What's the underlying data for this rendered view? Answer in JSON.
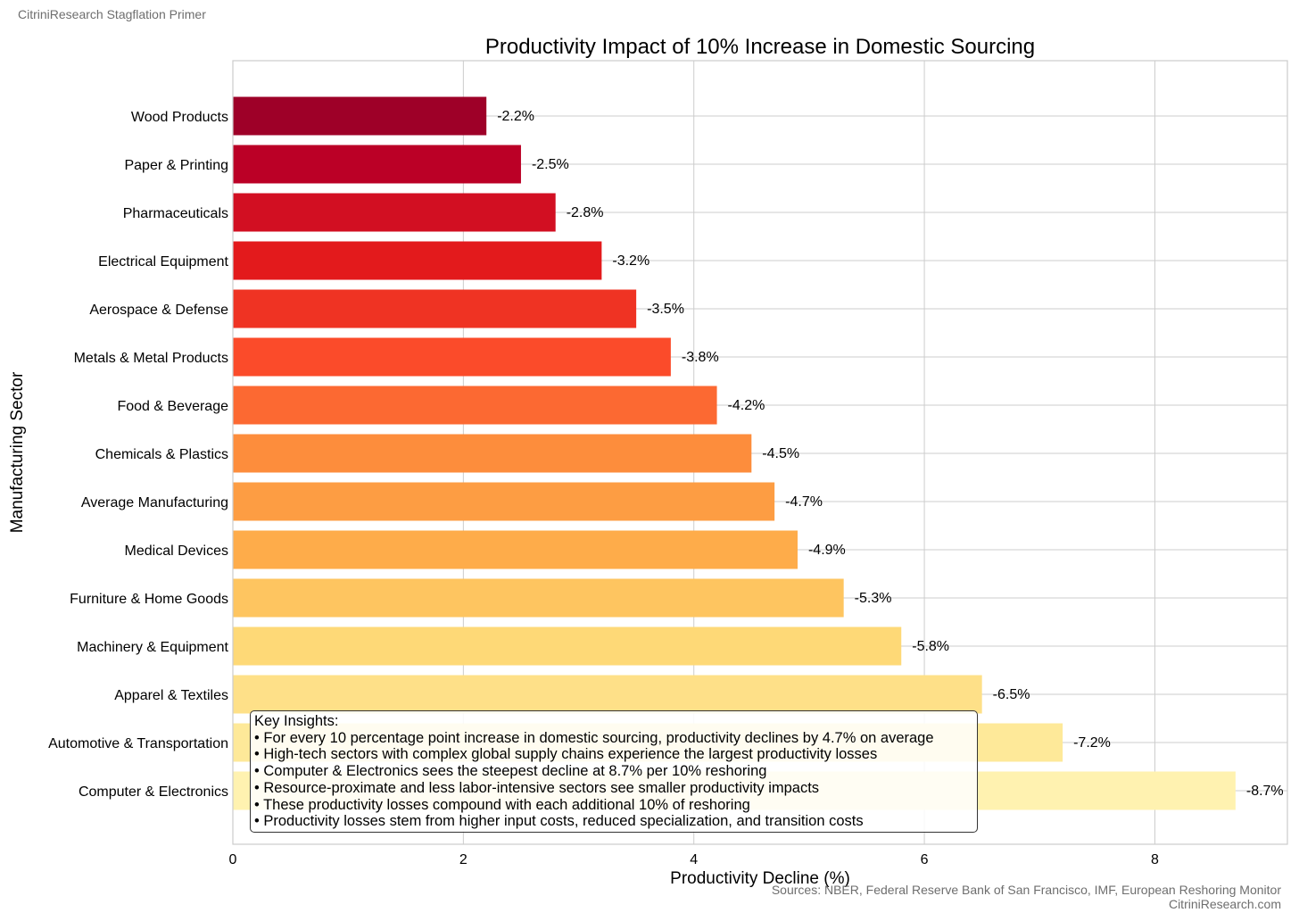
{
  "brand": "CitriniResearch Stagflation Primer",
  "sources": {
    "line1": "Sources: NBER, Federal Reserve Bank of San Francisco, IMF, European Reshoring Monitor",
    "line2": "CitriniResearch.com"
  },
  "insights": {
    "title": "Key Insights:",
    "items": [
      "For every 10 percentage point increase in domestic sourcing, productivity declines by 4.7% on average",
      "High-tech sectors with complex global supply chains experience the largest productivity losses",
      "Computer & Electronics sees the steepest decline at 8.7% per 10% reshoring",
      "Resource-proximate and less labor-intensive sectors see smaller productivity impacts",
      "These productivity losses compound with each additional 10% of reshoring",
      "Productivity losses stem from higher input costs, reduced specialization, and transition costs"
    ]
  },
  "chart_data": {
    "type": "bar",
    "orientation": "horizontal",
    "title": "Productivity Impact of 10% Increase in Domestic Sourcing",
    "xlabel": "Productivity Decline (%)",
    "ylabel": "Manufacturing Sector",
    "xlim": [
      0,
      9.15
    ],
    "xticks": [
      0,
      2,
      4,
      6,
      8
    ],
    "grid": true,
    "categories": [
      "Wood Products",
      "Paper & Printing",
      "Pharmaceuticals",
      "Electrical Equipment",
      "Aerospace & Defense",
      "Metals & Metal Products",
      "Food & Beverage",
      "Chemicals & Plastics",
      "Average Manufacturing",
      "Medical Devices",
      "Furniture & Home Goods",
      "Machinery & Equipment",
      "Apparel & Textiles",
      "Automotive & Transportation",
      "Computer & Electronics"
    ],
    "values": [
      2.2,
      2.5,
      2.8,
      3.2,
      3.5,
      3.8,
      4.2,
      4.5,
      4.7,
      4.9,
      5.3,
      5.8,
      6.5,
      7.2,
      8.7
    ],
    "data_labels": [
      "-2.2%",
      "-2.5%",
      "-2.8%",
      "-3.2%",
      "-3.5%",
      "-3.8%",
      "-4.2%",
      "-4.5%",
      "-4.7%",
      "-4.9%",
      "-5.3%",
      "-5.8%",
      "-6.5%",
      "-7.2%",
      "-8.7%"
    ],
    "colors": [
      "#9e0028",
      "#bb0026",
      "#d20f22",
      "#e31a1c",
      "#ef3323",
      "#fb4b2a",
      "#fc6932",
      "#fd8d3c",
      "#fd9d43",
      "#feac4a",
      "#fec560",
      "#fed977",
      "#fee088",
      "#fee999",
      "#fff2b0"
    ]
  }
}
